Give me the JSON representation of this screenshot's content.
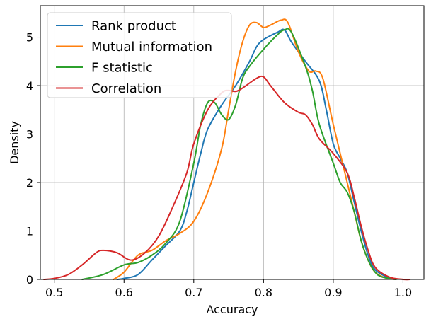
{
  "chart_data": {
    "type": "line",
    "xlabel": "Accuracy",
    "ylabel": "Density",
    "xlim": [
      0.48,
      1.03
    ],
    "ylim": [
      0,
      5.65
    ],
    "xticks": [
      0.5,
      0.6,
      0.7,
      0.8,
      0.9,
      1.0
    ],
    "xtick_labels": [
      "0.5",
      "0.6",
      "0.7",
      "0.8",
      "0.9",
      "1.0"
    ],
    "yticks": [
      0,
      1,
      2,
      3,
      4,
      5
    ],
    "ytick_labels": [
      "0",
      "1",
      "2",
      "3",
      "4",
      "5"
    ],
    "grid": true,
    "legend_position": "top-left",
    "series": [
      {
        "name": "Rank product",
        "color": "#1f77b4",
        "points": [
          [
            0.59,
            0.0
          ],
          [
            0.6,
            0.02
          ],
          [
            0.62,
            0.1
          ],
          [
            0.64,
            0.4
          ],
          [
            0.66,
            0.7
          ],
          [
            0.68,
            1.0
          ],
          [
            0.69,
            1.4
          ],
          [
            0.7,
            2.0
          ],
          [
            0.71,
            2.6
          ],
          [
            0.72,
            3.1
          ],
          [
            0.74,
            3.6
          ],
          [
            0.76,
            4.0
          ],
          [
            0.78,
            4.5
          ],
          [
            0.79,
            4.8
          ],
          [
            0.8,
            4.95
          ],
          [
            0.82,
            5.1
          ],
          [
            0.83,
            5.15
          ],
          [
            0.84,
            4.9
          ],
          [
            0.86,
            4.5
          ],
          [
            0.88,
            4.1
          ],
          [
            0.89,
            3.5
          ],
          [
            0.9,
            2.8
          ],
          [
            0.91,
            2.5
          ],
          [
            0.92,
            2.2
          ],
          [
            0.93,
            1.6
          ],
          [
            0.94,
            1.0
          ],
          [
            0.95,
            0.5
          ],
          [
            0.96,
            0.2
          ],
          [
            0.98,
            0.03
          ],
          [
            0.99,
            0.0
          ]
        ]
      },
      {
        "name": "Mutual information",
        "color": "#ff7f0e",
        "points": [
          [
            0.585,
            0.0
          ],
          [
            0.6,
            0.15
          ],
          [
            0.62,
            0.5
          ],
          [
            0.64,
            0.6
          ],
          [
            0.66,
            0.8
          ],
          [
            0.68,
            0.95
          ],
          [
            0.7,
            1.2
          ],
          [
            0.72,
            1.8
          ],
          [
            0.74,
            2.7
          ],
          [
            0.75,
            3.5
          ],
          [
            0.76,
            4.3
          ],
          [
            0.77,
            4.9
          ],
          [
            0.78,
            5.25
          ],
          [
            0.79,
            5.3
          ],
          [
            0.8,
            5.2
          ],
          [
            0.81,
            5.25
          ],
          [
            0.825,
            5.35
          ],
          [
            0.835,
            5.3
          ],
          [
            0.85,
            4.7
          ],
          [
            0.865,
            4.3
          ],
          [
            0.875,
            4.3
          ],
          [
            0.885,
            4.15
          ],
          [
            0.9,
            3.2
          ],
          [
            0.92,
            2.0
          ],
          [
            0.93,
            1.4
          ],
          [
            0.94,
            0.8
          ],
          [
            0.95,
            0.4
          ],
          [
            0.96,
            0.15
          ],
          [
            0.975,
            0.03
          ],
          [
            0.99,
            0.0
          ]
        ]
      },
      {
        "name": "F statistic",
        "color": "#2ca02c",
        "points": [
          [
            0.54,
            0.0
          ],
          [
            0.57,
            0.1
          ],
          [
            0.6,
            0.3
          ],
          [
            0.62,
            0.35
          ],
          [
            0.64,
            0.5
          ],
          [
            0.66,
            0.75
          ],
          [
            0.68,
            1.2
          ],
          [
            0.7,
            2.4
          ],
          [
            0.71,
            3.2
          ],
          [
            0.72,
            3.65
          ],
          [
            0.73,
            3.65
          ],
          [
            0.74,
            3.4
          ],
          [
            0.75,
            3.3
          ],
          [
            0.76,
            3.6
          ],
          [
            0.77,
            4.15
          ],
          [
            0.78,
            4.4
          ],
          [
            0.8,
            4.75
          ],
          [
            0.82,
            5.05
          ],
          [
            0.83,
            5.15
          ],
          [
            0.84,
            5.1
          ],
          [
            0.86,
            4.4
          ],
          [
            0.87,
            3.9
          ],
          [
            0.88,
            3.2
          ],
          [
            0.9,
            2.4
          ],
          [
            0.91,
            2.0
          ],
          [
            0.92,
            1.8
          ],
          [
            0.93,
            1.4
          ],
          [
            0.94,
            0.8
          ],
          [
            0.95,
            0.4
          ],
          [
            0.96,
            0.15
          ],
          [
            0.97,
            0.05
          ],
          [
            0.99,
            0.0
          ]
        ]
      },
      {
        "name": "Correlation",
        "color": "#d62728",
        "points": [
          [
            0.485,
            0.0
          ],
          [
            0.5,
            0.02
          ],
          [
            0.52,
            0.1
          ],
          [
            0.54,
            0.3
          ],
          [
            0.56,
            0.55
          ],
          [
            0.57,
            0.6
          ],
          [
            0.59,
            0.55
          ],
          [
            0.61,
            0.4
          ],
          [
            0.63,
            0.55
          ],
          [
            0.65,
            0.9
          ],
          [
            0.67,
            1.5
          ],
          [
            0.69,
            2.2
          ],
          [
            0.7,
            2.8
          ],
          [
            0.72,
            3.5
          ],
          [
            0.74,
            3.85
          ],
          [
            0.75,
            3.9
          ],
          [
            0.76,
            3.88
          ],
          [
            0.77,
            3.95
          ],
          [
            0.79,
            4.15
          ],
          [
            0.8,
            4.18
          ],
          [
            0.81,
            4.0
          ],
          [
            0.83,
            3.65
          ],
          [
            0.85,
            3.45
          ],
          [
            0.86,
            3.4
          ],
          [
            0.87,
            3.2
          ],
          [
            0.88,
            2.9
          ],
          [
            0.9,
            2.6
          ],
          [
            0.92,
            2.2
          ],
          [
            0.93,
            1.7
          ],
          [
            0.94,
            1.1
          ],
          [
            0.95,
            0.6
          ],
          [
            0.96,
            0.25
          ],
          [
            0.98,
            0.05
          ],
          [
            1.0,
            0.0
          ],
          [
            1.01,
            0.0
          ]
        ]
      }
    ]
  }
}
